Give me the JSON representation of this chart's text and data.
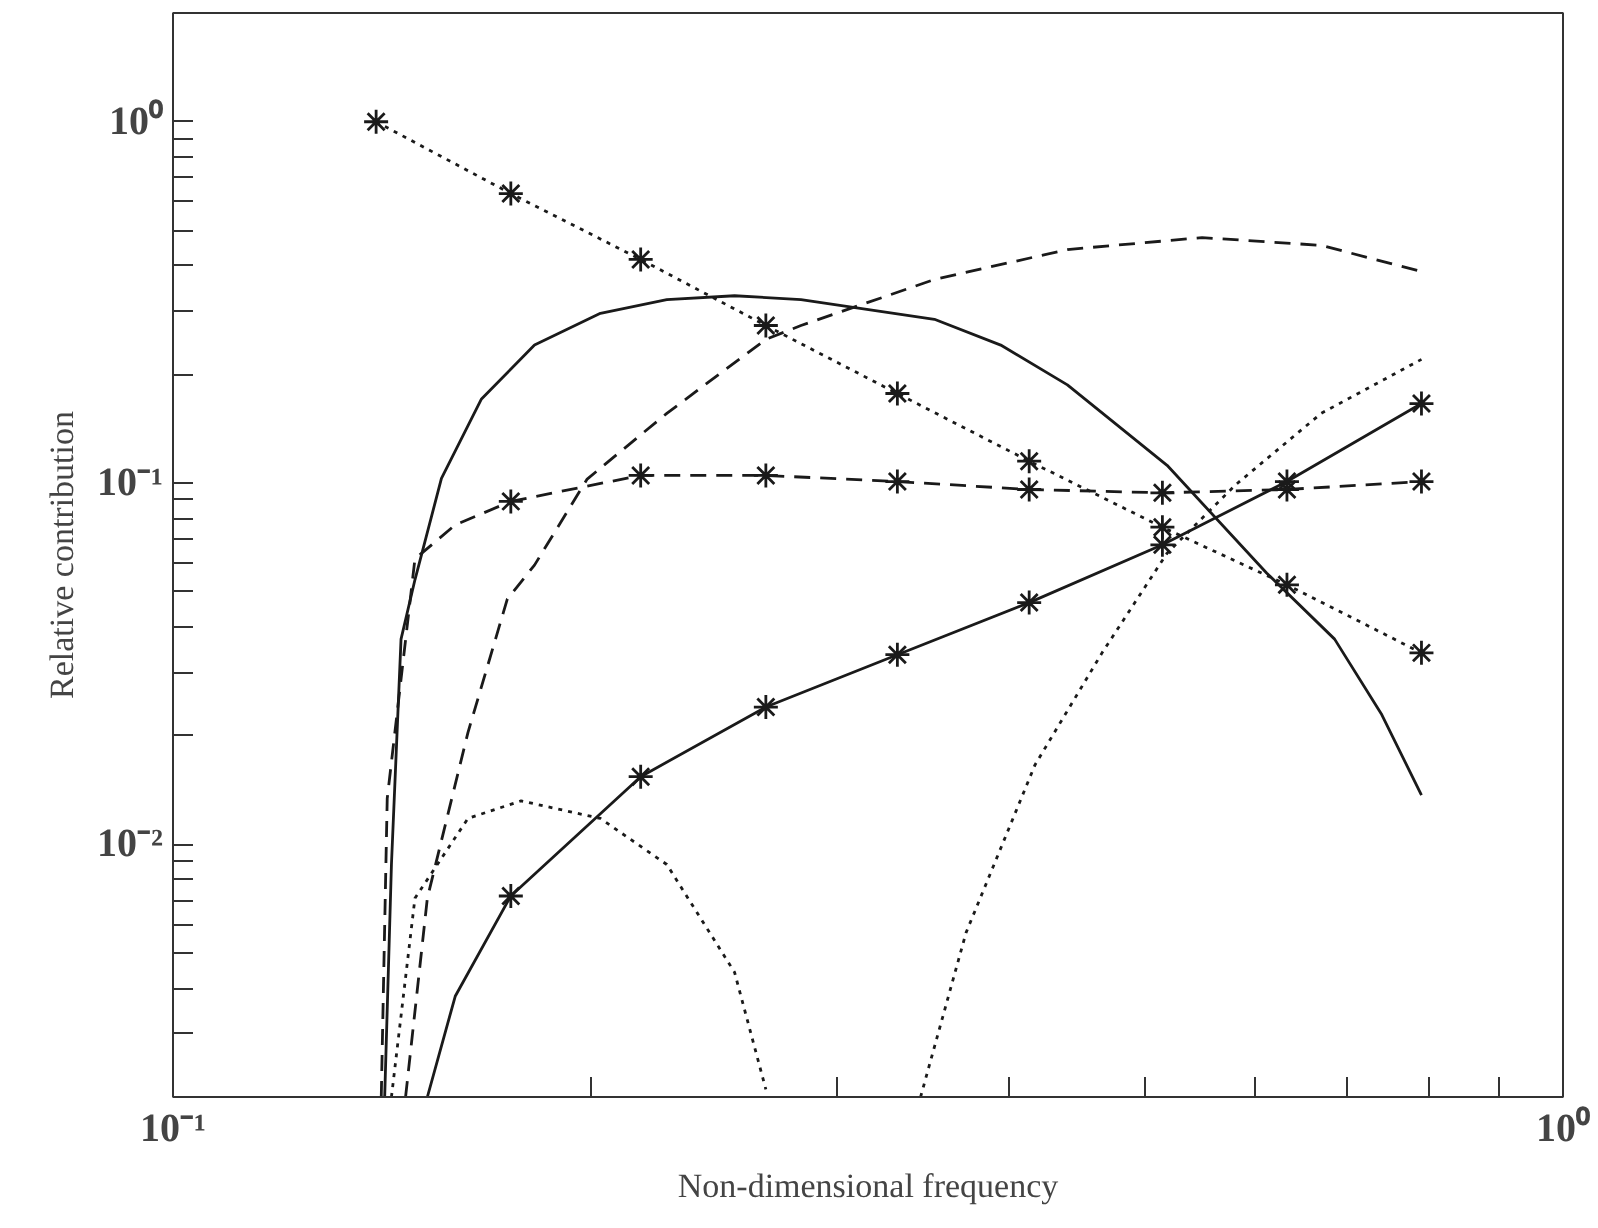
{
  "chart_data": {
    "type": "line",
    "xlabel": "Non-dimensional frequency",
    "ylabel": "Relative contribution",
    "log": "xy",
    "grid": false,
    "xlim": [
      0.1,
      1
    ],
    "ylim": [
      0.002,
      2
    ],
    "xticks": [
      {
        "value": 0.1,
        "label": "10⁻¹"
      },
      {
        "value": 0.2,
        "label": null
      },
      {
        "value": 0.3,
        "label": null
      },
      {
        "value": 0.4,
        "label": null
      },
      {
        "value": 0.5,
        "label": null
      },
      {
        "value": 0.6,
        "label": null
      },
      {
        "value": 0.7,
        "label": null
      },
      {
        "value": 0.8,
        "label": null
      },
      {
        "value": 0.9,
        "label": null
      },
      {
        "value": 1,
        "label": "10⁰"
      }
    ],
    "yticks": [
      {
        "value": 0.003,
        "label": null
      },
      {
        "value": 0.004,
        "label": null
      },
      {
        "value": 0.005,
        "label": null
      },
      {
        "value": 0.006,
        "label": null
      },
      {
        "value": 0.007,
        "label": null
      },
      {
        "value": 0.008,
        "label": null
      },
      {
        "value": 0.009,
        "label": null
      },
      {
        "value": 0.01,
        "label": "10⁻²"
      },
      {
        "value": 0.02,
        "label": null
      },
      {
        "value": 0.03,
        "label": null
      },
      {
        "value": 0.04,
        "label": null
      },
      {
        "value": 0.05,
        "label": null
      },
      {
        "value": 0.06,
        "label": null
      },
      {
        "value": 0.07,
        "label": null
      },
      {
        "value": 0.08,
        "label": null
      },
      {
        "value": 0.09,
        "label": null
      },
      {
        "value": 0.1,
        "label": "10⁻¹"
      },
      {
        "value": 0.2,
        "label": null
      },
      {
        "value": 0.3,
        "label": null
      },
      {
        "value": 0.4,
        "label": null
      },
      {
        "value": 0.5,
        "label": null
      },
      {
        "value": 0.6,
        "label": null
      },
      {
        "value": 0.7,
        "label": null
      },
      {
        "value": 0.8,
        "label": null
      },
      {
        "value": 0.9,
        "label": null
      },
      {
        "value": 1,
        "label": "10⁰"
      }
    ],
    "series": [
      {
        "color": "#1a1a1a",
        "line_style": "solid",
        "marker": "none",
        "x": [
          0.142,
          0.1436,
          0.1459,
          0.1493,
          0.156,
          0.1667,
          0.182,
          0.203,
          0.2266,
          0.2535,
          0.283,
          0.353,
          0.394,
          0.44,
          0.519,
          0.612,
          0.685,
          0.74,
          0.791
        ],
        "values": [
          0.002,
          0.0088,
          0.037,
          0.054,
          0.103,
          0.171,
          0.241,
          0.295,
          0.322,
          0.33,
          0.322,
          0.284,
          0.241,
          0.187,
          0.112,
          0.0564,
          0.037,
          0.023,
          0.0137
        ]
      },
      {
        "color": "#1a1a1a",
        "line_style": "dashed",
        "marker": "none",
        "x": [
          0.147,
          0.1524,
          0.163,
          0.174,
          0.182,
          0.1986,
          0.2266,
          0.267,
          0.283,
          0.353,
          0.44,
          0.55,
          0.67,
          0.791
        ],
        "values": [
          0.002,
          0.0071,
          0.0204,
          0.0478,
          0.0593,
          0.1026,
          0.156,
          0.25,
          0.273,
          0.366,
          0.443,
          0.478,
          0.455,
          0.385
        ]
      },
      {
        "color": "#1a1a1a",
        "line_style": "dotted",
        "marker": "none",
        "x": [
          0.1436,
          0.1493,
          0.163,
          0.178,
          0.203,
          0.2266,
          0.2535,
          0.267
        ],
        "values": [
          0.002,
          0.0071,
          0.0118,
          0.0132,
          0.0118,
          0.0088,
          0.00443,
          0.0021
        ]
      },
      {
        "color": "#1a1a1a",
        "line_style": "dotted",
        "marker": "none",
        "x": [
          0.345,
          0.372,
          0.417,
          0.466,
          0.519,
          0.581,
          0.67,
          0.791
        ],
        "values": [
          0.002,
          0.0057,
          0.0166,
          0.0339,
          0.064,
          0.0987,
          0.156,
          0.22
        ]
      },
      {
        "color": "#1a1a1a",
        "line_style": "dotted",
        "marker": "cross",
        "x": [
          0.14,
          0.175,
          0.217,
          0.267,
          0.332,
          0.413,
          0.515,
          0.633,
          0.791
        ],
        "values": [
          1.0,
          0.633,
          0.416,
          0.273,
          0.177,
          0.115,
          0.0755,
          0.0523,
          0.0339
        ]
      },
      {
        "color": "#1a1a1a",
        "line_style": "dashed",
        "marker": "none",
        "x": [
          0.1412,
          0.1426,
          0.1493,
          0.1596,
          0.175
        ],
        "values": [
          0.002,
          0.0134,
          0.0617,
          0.0766,
          0.089
        ]
      },
      {
        "color": "#1a1a1a",
        "line_style": "dashed",
        "marker": "cross",
        "x": [
          0.175,
          0.217,
          0.267,
          0.332,
          0.413,
          0.515,
          0.633,
          0.791
        ],
        "values": [
          0.089,
          0.105,
          0.105,
          0.101,
          0.096,
          0.094,
          0.096,
          0.101
        ]
      },
      {
        "color": "#1a1a1a",
        "line_style": "solid",
        "marker": "none",
        "x": [
          0.1524,
          0.1596,
          0.175
        ],
        "values": [
          0.002,
          0.0038,
          0.0072
        ]
      },
      {
        "color": "#1a1a1a",
        "line_style": "solid",
        "marker": "cross",
        "x": [
          0.175,
          0.217,
          0.267,
          0.332,
          0.413,
          0.515,
          0.633,
          0.791
        ],
        "values": [
          0.0072,
          0.0154,
          0.024,
          0.0335,
          0.0467,
          0.0675,
          0.101,
          0.166
        ]
      }
    ]
  }
}
